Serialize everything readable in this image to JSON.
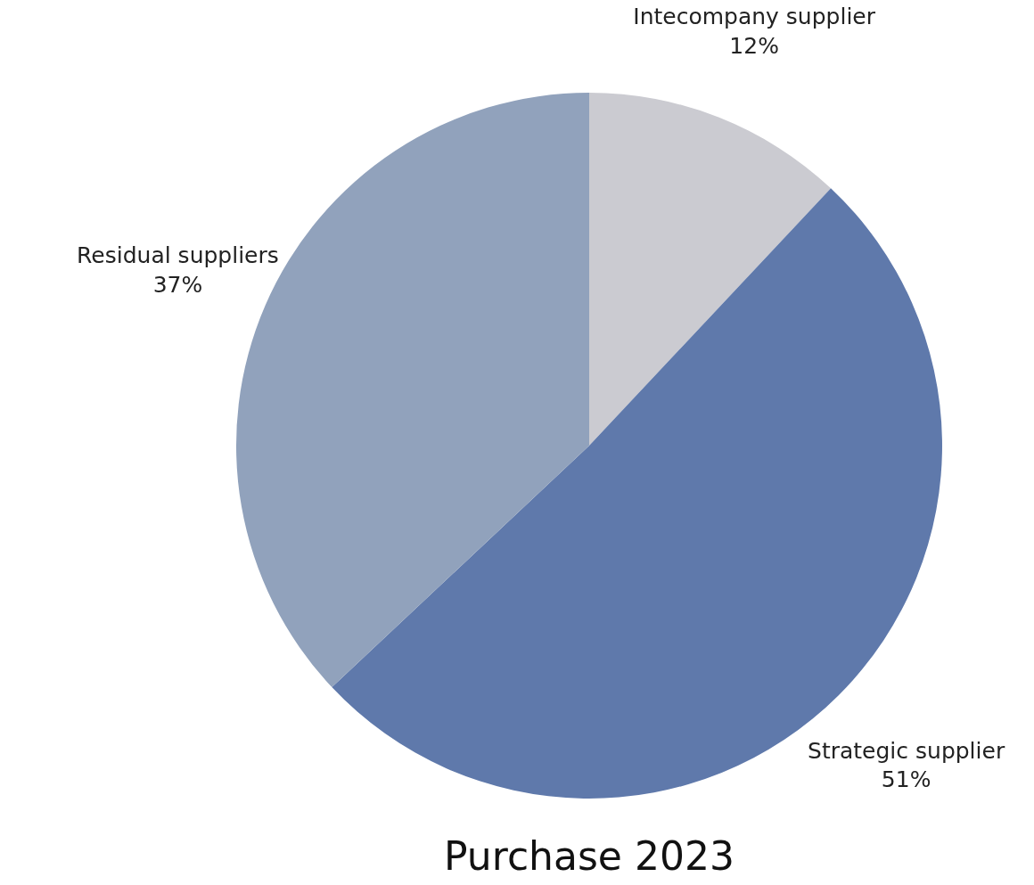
{
  "chart_data": {
    "type": "pie",
    "title": "Purchase 2023",
    "categories": [
      "Intecompany supplier",
      "Strategic supplier",
      "Residual suppliers"
    ],
    "values": [
      12,
      51,
      37
    ],
    "colors": [
      "#cbcbd1",
      "#5f79ab",
      "#91a2bc"
    ],
    "value_labels": [
      "12%",
      "51%",
      "37%"
    ]
  }
}
